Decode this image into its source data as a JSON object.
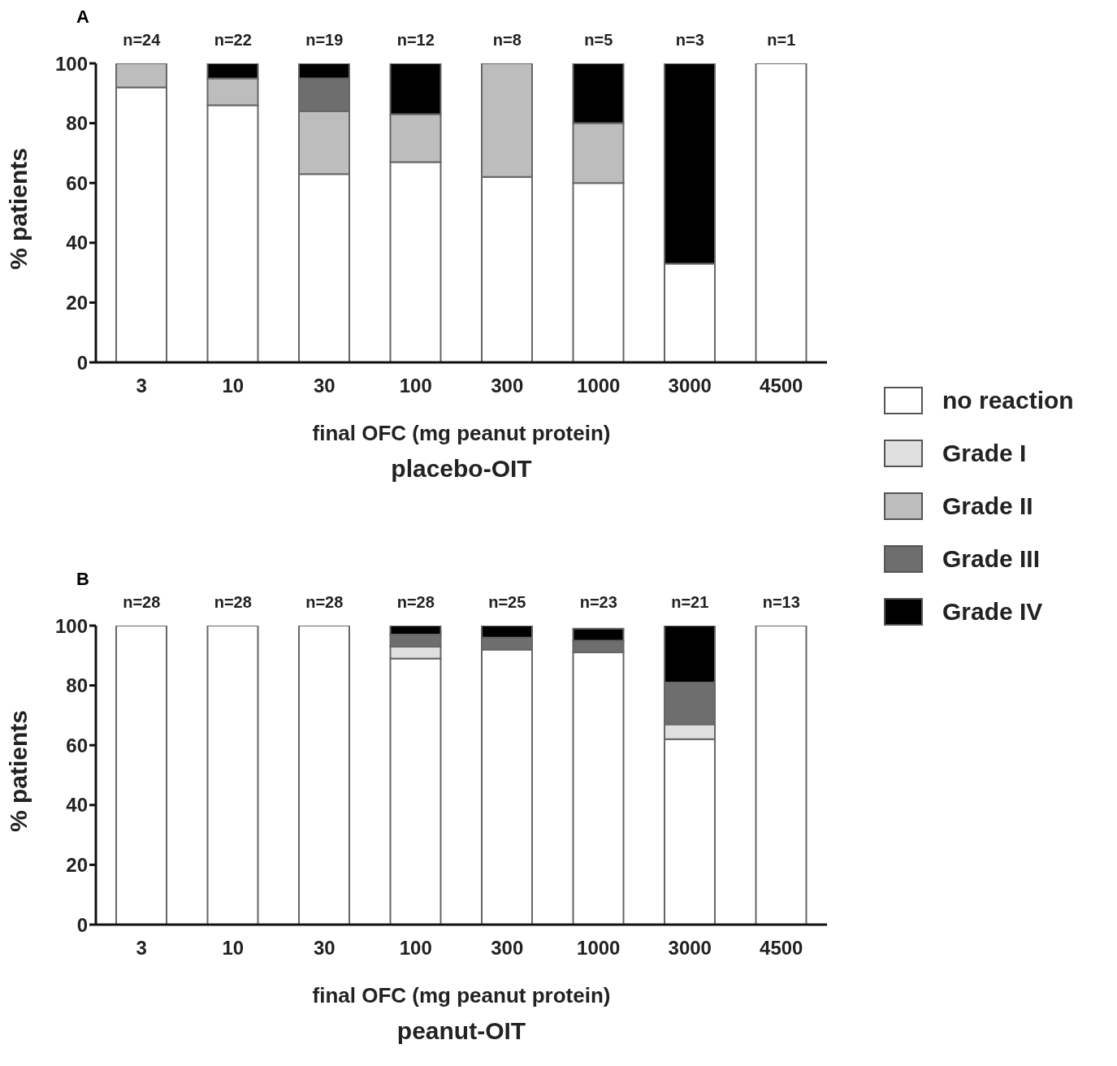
{
  "chart_data": [
    {
      "type": "bar",
      "title": "A",
      "subtitle": "placebo-OIT",
      "xlabel": "final OFC (mg peanut protein)",
      "ylabel": "% patients",
      "categories": [
        "3",
        "10",
        "30",
        "100",
        "300",
        "1000",
        "3000",
        "4500"
      ],
      "stacked": true,
      "legend": "right",
      "ylim": [
        0,
        100
      ],
      "yticks": [
        0,
        20,
        40,
        60,
        80,
        100
      ],
      "annotations": [
        "n=24",
        "n=22",
        "n=19",
        "n=12",
        "n=8",
        "n=5",
        "n=3",
        "n=1"
      ],
      "series": [
        {
          "name": "no reaction",
          "color": "#ffffff",
          "values": [
            92,
            86,
            63,
            67,
            62,
            60,
            33,
            100
          ]
        },
        {
          "name": "Grade I",
          "color": "#e0e0e0",
          "values": [
            0,
            0,
            0,
            0,
            0,
            0,
            0,
            0
          ]
        },
        {
          "name": "Grade II",
          "color": "#bdbdbd",
          "values": [
            8,
            9,
            21,
            16,
            38,
            20,
            0,
            0
          ]
        },
        {
          "name": "Grade III",
          "color": "#6e6e6e",
          "values": [
            0,
            0,
            11,
            0,
            0,
            0,
            0,
            0
          ]
        },
        {
          "name": "Grade IV",
          "color": "#000000",
          "values": [
            0,
            5,
            5,
            17,
            0,
            20,
            67,
            0
          ]
        }
      ]
    },
    {
      "type": "bar",
      "title": "B",
      "subtitle": "peanut-OIT",
      "xlabel": "final OFC (mg peanut protein)",
      "ylabel": "% patients",
      "categories": [
        "3",
        "10",
        "30",
        "100",
        "300",
        "1000",
        "3000",
        "4500"
      ],
      "stacked": true,
      "ylim": [
        0,
        100
      ],
      "yticks": [
        0,
        20,
        40,
        60,
        80,
        100
      ],
      "annotations": [
        "n=28",
        "n=28",
        "n=28",
        "n=28",
        "n=25",
        "n=23",
        "n=21",
        "n=13"
      ],
      "series": [
        {
          "color": "#ffffff",
          "values": [
            100,
            100,
            100,
            89,
            92,
            91,
            62,
            100
          ]
        },
        {
          "color": "#e0e0e0",
          "values": [
            0,
            0,
            0,
            4,
            0,
            0,
            5,
            0
          ]
        },
        {
          "color": "#bdbdbd",
          "values": [
            0,
            0,
            0,
            0,
            0,
            0,
            0,
            0
          ]
        },
        {
          "color": "#6e6e6e",
          "values": [
            0,
            0,
            0,
            4,
            4,
            4,
            14,
            0
          ]
        },
        {
          "color": "#000000",
          "values": [
            0,
            0,
            0,
            3,
            4,
            4,
            19,
            0
          ]
        }
      ]
    }
  ]
}
